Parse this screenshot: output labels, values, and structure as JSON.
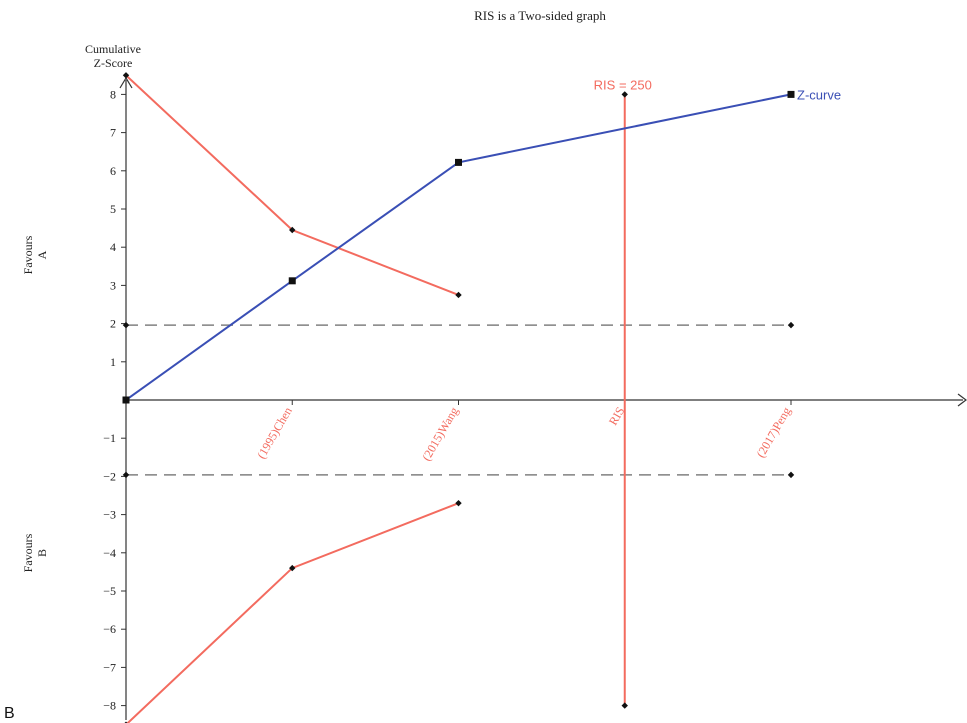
{
  "chart_data": {
    "type": "line",
    "title": "RIS is a Two-sided graph",
    "ylabel_lines": [
      "Cumulative",
      "Z-Score"
    ],
    "favours_a_lines": [
      "Favours",
      "A"
    ],
    "favours_b_lines": [
      "Favours",
      "B"
    ],
    "panel_label": "B",
    "x_positions": [
      0,
      1,
      2,
      3,
      4
    ],
    "x_tick_labels": [
      "(1995)Chen",
      "(2015)Wang",
      "RIS",
      "(2017)Peng"
    ],
    "x_tick_positions": [
      1,
      2,
      3,
      4
    ],
    "xlim": [
      0,
      5
    ],
    "ylim": [
      -8.5,
      8.5
    ],
    "y_ticks": [
      8,
      7,
      6,
      5,
      4,
      3,
      2,
      1,
      -1,
      -2,
      -3,
      -4,
      -5,
      -6,
      -7,
      -8
    ],
    "series": [
      {
        "name": "Z-curve",
        "color": "#3a4fb5",
        "marker": "square",
        "x": [
          0,
          1,
          2,
          4
        ],
        "y": [
          0,
          3.12,
          6.22,
          8.0
        ]
      }
    ],
    "monitoring_boundary_upper": {
      "color": "#f36b5f",
      "marker": "diamond",
      "x": [
        0,
        1,
        2
      ],
      "y": [
        8.5,
        4.45,
        2.75
      ]
    },
    "monitoring_boundary_lower": {
      "color": "#f36b5f",
      "marker": "diamond",
      "x": [
        0,
        1,
        2
      ],
      "y": [
        -8.5,
        -4.4,
        -2.7
      ]
    },
    "conventional_boundaries": {
      "color": "#808080",
      "style": "dashed",
      "x": [
        0,
        4
      ],
      "values": [
        1.96,
        -1.96
      ]
    },
    "ris_line": {
      "label": "RIS = 250",
      "color": "#f36b5f",
      "x": 3,
      "y": [
        -8.0,
        8.0
      ]
    }
  }
}
